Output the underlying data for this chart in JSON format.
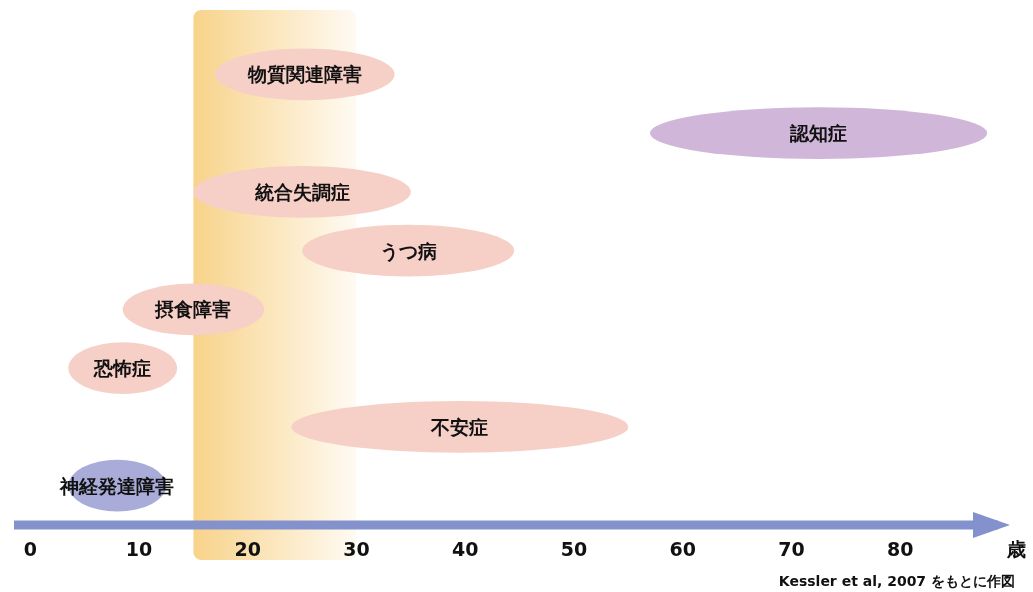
{
  "chart_data": {
    "type": "bar",
    "orientation": "horizontal",
    "xlabel": "歳",
    "categories": [
      "物質関連障害",
      "認知症",
      "統合失調症",
      "うつ病",
      "摂食障害",
      "恐怖症",
      "不安症",
      "神経発達障害"
    ],
    "series": [
      {
        "colors": [
          "#f6cfc7",
          "#d0b7d9",
          "#f6cfc7",
          "#f6cfc7",
          "#f6cfc7",
          "#f6cfc7",
          "#f6cfc7",
          "#a9acd9"
        ],
        "base": [
          17,
          57,
          15,
          25,
          8.5,
          3.5,
          24,
          3.5
        ],
        "values": [
          16.5,
          31,
          20,
          19.5,
          13,
          10,
          31,
          9
        ]
      }
    ],
    "bands": [
      {
        "axis": "x",
        "from": 15,
        "to": 30,
        "color": "#f8d38a"
      }
    ],
    "xlim": [
      -1.5,
      89
    ],
    "xticks": [
      0,
      10,
      20,
      30,
      40,
      50,
      60,
      70,
      80
    ],
    "annotations": [
      "Kessler et al, 2007 をもとに作図"
    ]
  }
}
